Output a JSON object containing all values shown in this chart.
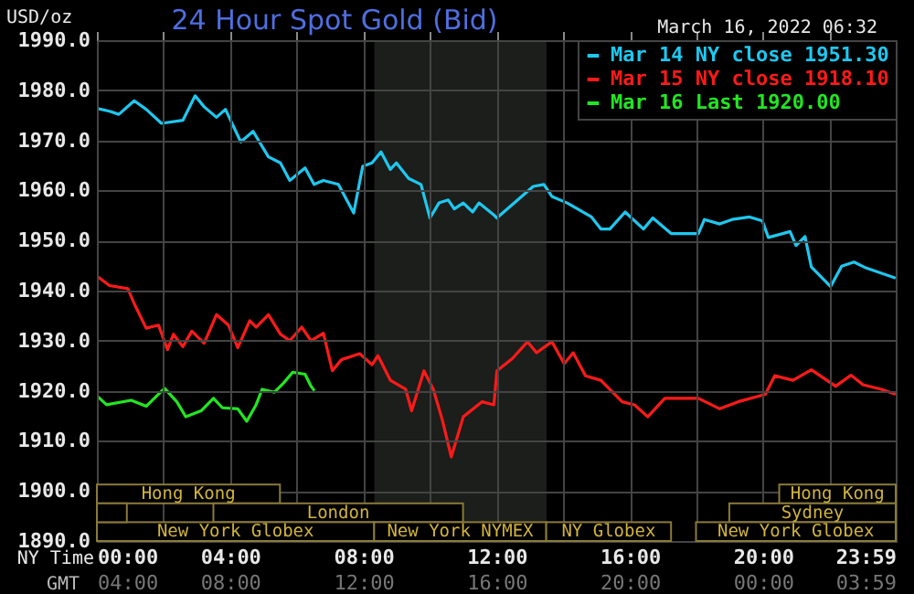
{
  "chart_data": {
    "type": "line",
    "title": "24 Hour Spot Gold (Bid)",
    "ylabel": "USD/oz",
    "xlabel": "NY Time",
    "x2label": "GMT",
    "xlim": [
      0,
      23.9833
    ],
    "xticks": [
      {
        "value": 0,
        "label": "00:00"
      },
      {
        "value": 2,
        "label": null
      },
      {
        "value": 4,
        "label": "04:00"
      },
      {
        "value": 6,
        "label": null
      },
      {
        "value": 8,
        "label": "08:00"
      },
      {
        "value": 10,
        "label": null
      },
      {
        "value": 12,
        "label": "12:00"
      },
      {
        "value": 14,
        "label": null
      },
      {
        "value": 16,
        "label": "16:00"
      },
      {
        "value": 18,
        "label": null
      },
      {
        "value": 20,
        "label": "20:00"
      },
      {
        "value": 22,
        "label": null
      },
      {
        "value": 23.9833,
        "label": "23:59"
      }
    ],
    "x2lim": [
      "2022-03-16T04:00",
      "2022-03-17T03:59"
    ],
    "x2ticks": [
      {
        "value": "2022-03-16T04:00",
        "label": "04:00"
      },
      {
        "value": "2022-03-16T08:00",
        "label": "08:00"
      },
      {
        "value": "2022-03-16T12:00",
        "label": "12:00"
      },
      {
        "value": "2022-03-16T16:00",
        "label": "16:00"
      },
      {
        "value": "2022-03-16T20:00",
        "label": "20:00"
      },
      {
        "value": "2022-03-17T00:00",
        "label": "00:00"
      },
      {
        "value": "2022-03-17T03:59",
        "label": "03:59"
      }
    ],
    "ylim": [
      1890,
      1990
    ],
    "yticks": [
      {
        "value": 1890,
        "label": "1890.0"
      },
      {
        "value": 1900,
        "label": "1900.0"
      },
      {
        "value": 1910,
        "label": "1910.0"
      },
      {
        "value": 1920,
        "label": "1920.0"
      },
      {
        "value": 1930,
        "label": "1930.0"
      },
      {
        "value": 1940,
        "label": "1940.0"
      },
      {
        "value": 1950,
        "label": "1950.0"
      },
      {
        "value": 1960,
        "label": "1960.0"
      },
      {
        "value": 1970,
        "label": "1970.0"
      },
      {
        "value": 1980,
        "label": "1980.0"
      },
      {
        "value": 1990,
        "label": "1990.0"
      }
    ],
    "grid": true,
    "legend": "top right",
    "series": [
      {
        "name": "Mar 14 NY close 1951.30",
        "color": "#1ec8f0",
        "x": [
          0,
          0.38,
          0.66,
          1.12,
          1.48,
          1.94,
          2.58,
          2.95,
          3.22,
          3.59,
          3.86,
          4.32,
          4.69,
          5.15,
          5.51,
          5.79,
          6.25,
          6.52,
          6.8,
          7.25,
          7.71,
          7.98,
          8.26,
          8.53,
          8.81,
          8.99,
          9.36,
          9.73,
          10,
          10.27,
          10.55,
          10.73,
          11,
          11.28,
          11.47,
          11.92,
          12.01,
          13.1,
          13.42,
          13.66,
          14.12,
          14.85,
          15.13,
          15.4,
          15.86,
          16.41,
          16.69,
          17.24,
          18.06,
          18.24,
          18.7,
          19.07,
          19.6,
          19.98,
          20.16,
          20.81,
          20.99,
          21.26,
          21.45,
          22.03,
          22.36,
          22.73,
          23.1,
          23.98
        ],
        "values": [
          1976.4,
          1975.8,
          1975.2,
          1977.9,
          1976.2,
          1973.4,
          1974,
          1978.9,
          1976.7,
          1974.6,
          1976.2,
          1969.7,
          1971.8,
          1966.7,
          1965.5,
          1962,
          1964.5,
          1961.2,
          1962,
          1961.2,
          1955.5,
          1964.8,
          1965.5,
          1967.7,
          1964.2,
          1965.5,
          1962.4,
          1961.2,
          1954.5,
          1957.5,
          1958.1,
          1956.3,
          1957.5,
          1955.7,
          1957.5,
          1955.1,
          1954.5,
          1960.8,
          1961.2,
          1958.8,
          1957.5,
          1954.7,
          1952.3,
          1952.3,
          1955.7,
          1952.3,
          1954.5,
          1951.4,
          1951.4,
          1954.2,
          1953.3,
          1954.2,
          1954.7,
          1953.9,
          1950.6,
          1951.8,
          1949,
          1950.8,
          1944.7,
          1940.8,
          1944.9,
          1945.7,
          1944.5,
          1942.5
        ]
      },
      {
        "name": "Mar 15 NY close 1918.10",
        "color": "#ff1a1a",
        "x": [
          0,
          0.38,
          0.93,
          1.12,
          1.48,
          1.85,
          2.12,
          2.3,
          2.58,
          2.85,
          3.22,
          3.59,
          3.95,
          4.23,
          4.59,
          4.78,
          5.15,
          5.51,
          5.79,
          6.15,
          6.43,
          6.8,
          7.07,
          7.34,
          7.89,
          8.26,
          8.44,
          8.81,
          9.27,
          9.45,
          9.82,
          10.1,
          10.37,
          10.64,
          11,
          11.56,
          11.92,
          12.01,
          12.47,
          12.93,
          13.2,
          13.66,
          14.03,
          14.3,
          14.67,
          15.13,
          15.77,
          16.14,
          16.54,
          17.05,
          18.06,
          18.7,
          19.25,
          20.07,
          20.35,
          20.9,
          21.45,
          22.18,
          22.64,
          23,
          23.55,
          23.98
        ],
        "values": [
          1942.9,
          1941,
          1940.4,
          1937.4,
          1932.5,
          1933.1,
          1928.2,
          1931.3,
          1928.8,
          1931.9,
          1929.5,
          1935.2,
          1933.1,
          1928.6,
          1934,
          1932.7,
          1935.2,
          1931.3,
          1930,
          1932.7,
          1930,
          1931.5,
          1924,
          1926.2,
          1927.4,
          1925.2,
          1927,
          1922.1,
          1920.3,
          1916,
          1924,
          1920.3,
          1914.2,
          1906.8,
          1914.8,
          1917.8,
          1917.2,
          1924,
          1926.4,
          1929.8,
          1927.6,
          1929.8,
          1925.4,
          1927.6,
          1923,
          1922.1,
          1917.8,
          1917.2,
          1914.8,
          1918.5,
          1918.5,
          1916.4,
          1917.8,
          1919.3,
          1923,
          1922.1,
          1924.2,
          1920.9,
          1923.1,
          1921.2,
          1920.3,
          1919.3
        ]
      },
      {
        "name": "Mar 16 Last 1920.00",
        "color": "#22e622",
        "x": [
          0,
          0.29,
          1.03,
          1.48,
          2.03,
          2.4,
          2.67,
          3.13,
          3.5,
          3.77,
          4.23,
          4.5,
          4.78,
          4.96,
          5.33,
          5.6,
          5.88,
          6.25,
          6.43,
          6.53
        ],
        "values": [
          1919,
          1917.2,
          1918.1,
          1916.9,
          1920.5,
          1917.8,
          1914.8,
          1916,
          1918.5,
          1916.6,
          1916.4,
          1913.9,
          1917.2,
          1920.3,
          1919.7,
          1921.5,
          1923.7,
          1923.3,
          1920.9,
          1920
        ]
      }
    ],
    "bands": [
      {
        "axis": "x",
        "from": 8.33,
        "to": 13.5,
        "label": null,
        "color": "#1b1e1b"
      }
    ],
    "annotations": [
      "March 16, 2022 06:32",
      "Hong Kong",
      "London",
      "New York Globex",
      "New York NYMEX",
      "NY Globex",
      "Hong Kong",
      "Sydney",
      "New York Globex"
    ]
  }
}
